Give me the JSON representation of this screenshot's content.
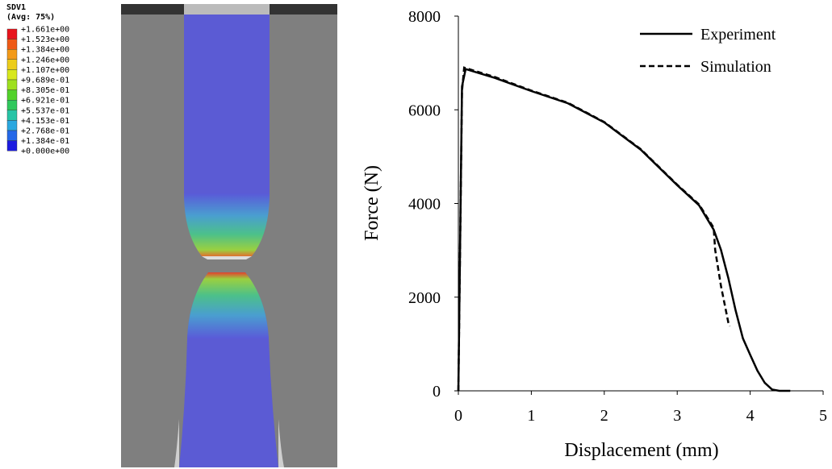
{
  "contour_legend": {
    "title": "SDV1",
    "subtitle": "(Avg: 75%)",
    "labels": [
      "+1.661e+00",
      "+1.523e+00",
      "+1.384e+00",
      "+1.246e+00",
      "+1.107e+00",
      "+9.689e-01",
      "+8.305e-01",
      "+6.921e-01",
      "+5.537e-01",
      "+4.153e-01",
      "+2.768e-01",
      "+1.384e-01",
      "+0.000e+00"
    ],
    "colors": [
      "#e8141c",
      "#ef5a16",
      "#f39a18",
      "#eccd1a",
      "#d8e81c",
      "#9ee01e",
      "#52d22a",
      "#2fc85c",
      "#26c4a6",
      "#2aa8e0",
      "#2468e8",
      "#1c1ce0"
    ]
  },
  "chart_data": {
    "type": "line",
    "xlabel": "Displacement (mm)",
    "ylabel": "Force (N)",
    "xlim": [
      0,
      5
    ],
    "xticks": [
      0,
      1,
      2,
      3,
      4,
      5
    ],
    "ylim": [
      0,
      8000
    ],
    "yticks": [
      0,
      2000,
      4000,
      6000,
      8000
    ],
    "legend": "upper right",
    "series": [
      {
        "name": "Experiment",
        "color": "#000000",
        "style": "solid",
        "x": [
          0,
          0.05,
          0.1,
          0.5,
          1,
          1.5,
          2,
          2.5,
          3,
          3.3,
          3.5,
          3.6,
          3.7,
          3.8,
          3.9,
          4.0,
          4.1,
          4.2,
          4.3,
          4.4,
          4.55
        ],
        "values": [
          0,
          6500,
          6870,
          6680,
          6400,
          6140,
          5730,
          5150,
          4390,
          3960,
          3440,
          3010,
          2410,
          1720,
          1120,
          770,
          430,
          170,
          30,
          0,
          0
        ]
      },
      {
        "name": "Simulation",
        "color": "#000000",
        "style": "dashed",
        "x": [
          0,
          0.05,
          0.08,
          0.5,
          1,
          1.5,
          2,
          2.5,
          3,
          3.3,
          3.5,
          3.52,
          3.6,
          3.7,
          3.72
        ],
        "values": [
          0,
          6400,
          6900,
          6700,
          6410,
          6150,
          5740,
          5160,
          4400,
          3980,
          3480,
          3010,
          2240,
          1460,
          1380
        ]
      }
    ]
  }
}
